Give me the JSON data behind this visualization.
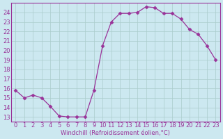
{
  "x": [
    0,
    1,
    2,
    3,
    4,
    5,
    6,
    7,
    8,
    9,
    10,
    11,
    12,
    13,
    14,
    15,
    16,
    17,
    18,
    19,
    20,
    21,
    22,
    23
  ],
  "y": [
    15.8,
    15.0,
    15.3,
    15.0,
    14.1,
    13.1,
    13.0,
    13.0,
    13.0,
    15.8,
    20.5,
    23.0,
    23.9,
    23.9,
    24.0,
    24.6,
    24.5,
    23.9,
    23.9,
    23.3,
    22.2,
    21.7,
    20.5,
    19.0
  ],
  "line_color": "#993399",
  "marker": "D",
  "marker_size": 2.5,
  "bg_color": "#cce8f0",
  "grid_color": "#aacccc",
  "xlabel": "Windchill (Refroidissement éolien,°C)",
  "ylim": [
    12.5,
    25.0
  ],
  "xlim": [
    -0.5,
    23.5
  ],
  "yticks": [
    13,
    14,
    15,
    16,
    17,
    18,
    19,
    20,
    21,
    22,
    23,
    24
  ],
  "xticks": [
    0,
    1,
    2,
    3,
    4,
    5,
    6,
    7,
    8,
    9,
    10,
    11,
    12,
    13,
    14,
    15,
    16,
    17,
    18,
    19,
    20,
    21,
    22,
    23
  ],
  "label_fontsize": 6.0,
  "tick_fontsize": 6.0
}
